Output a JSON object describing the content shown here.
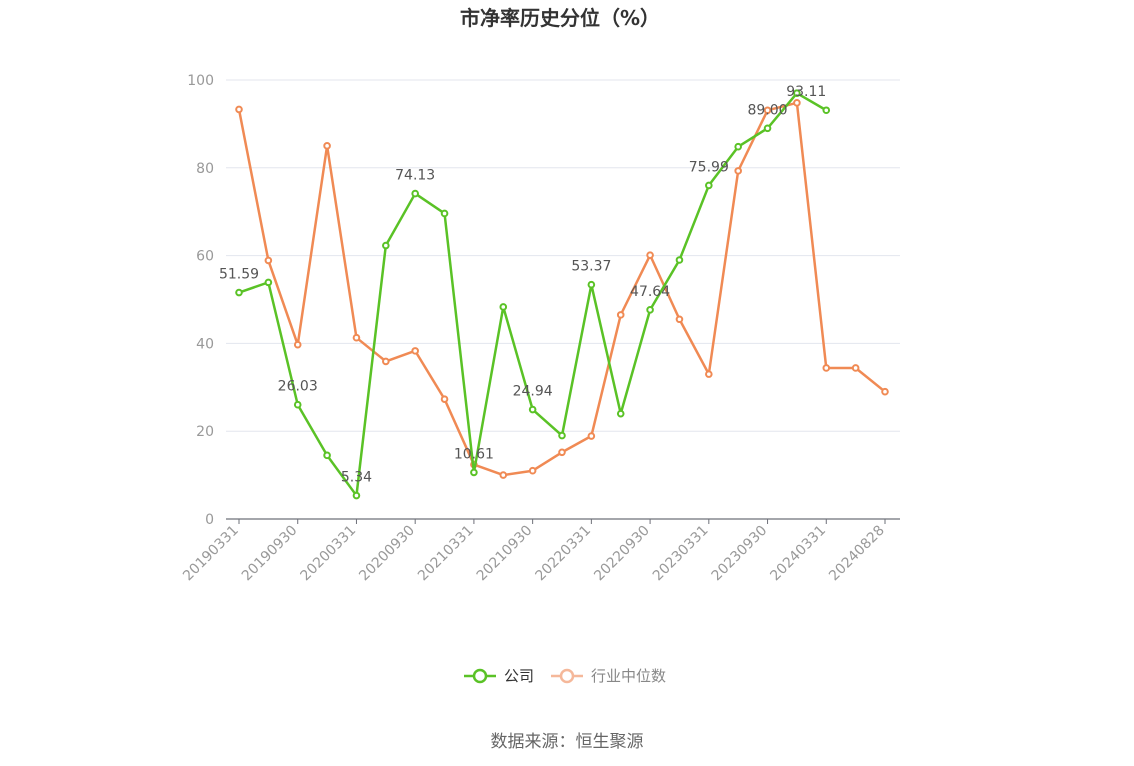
{
  "chart_data": {
    "type": "line",
    "title": "市净率历史分位（%）",
    "xlabel": "",
    "ylabel": "",
    "ylim": [
      0,
      100
    ],
    "yticks": [
      0,
      20,
      40,
      60,
      80,
      100
    ],
    "grid": true,
    "legend_position": "bottom-center",
    "categories": [
      "20190331",
      "20190630",
      "20190930",
      "20191231",
      "20200331",
      "20200630",
      "20200930",
      "20201231",
      "20210331",
      "20210630",
      "20210930",
      "20211231",
      "20220331",
      "20220630",
      "20220930",
      "20221231",
      "20230331",
      "20230630",
      "20230930",
      "20231231",
      "20240331",
      "20240630",
      "20240828"
    ],
    "tick_labels": [
      "20190331",
      "20190930",
      "20200331",
      "20200930",
      "20210331",
      "20210930",
      "20220331",
      "20220930",
      "20230331",
      "20230930",
      "20240331",
      "20240828"
    ],
    "tick_indices": [
      0,
      2,
      4,
      6,
      8,
      10,
      12,
      14,
      16,
      18,
      20,
      22
    ],
    "series": [
      {
        "name": "公司",
        "color": "#5ac226",
        "values": [
          51.59,
          53.9,
          26.03,
          14.5,
          5.34,
          62.3,
          74.13,
          69.6,
          10.61,
          48.3,
          24.94,
          19.0,
          53.37,
          24.0,
          47.64,
          59.0,
          75.99,
          84.8,
          89.0,
          97.0,
          93.11,
          null,
          null
        ],
        "labels": [
          {
            "index": 0,
            "text": "51.59"
          },
          {
            "index": 2,
            "text": "26.03"
          },
          {
            "index": 4,
            "text": "5.34"
          },
          {
            "index": 6,
            "text": "74.13"
          },
          {
            "index": 8,
            "text": "10.61"
          },
          {
            "index": 10,
            "text": "24.94"
          },
          {
            "index": 12,
            "text": "53.37"
          },
          {
            "index": 14,
            "text": "47.64"
          },
          {
            "index": 16,
            "text": "75.99"
          },
          {
            "index": 18,
            "text": "89.00"
          },
          {
            "index": 20,
            "text": "93.11"
          }
        ]
      },
      {
        "name": "行业中位数",
        "color": "#f08a54",
        "values": [
          93.3,
          58.9,
          39.7,
          85.0,
          41.3,
          35.9,
          38.3,
          27.3,
          12.4,
          10.0,
          11.0,
          15.2,
          18.9,
          46.5,
          60.1,
          45.5,
          33.0,
          79.3,
          93.1,
          94.8,
          34.4,
          34.4,
          29.0
        ]
      }
    ]
  },
  "legend": {
    "items": [
      {
        "label": "公司",
        "color": "#5ac226"
      },
      {
        "label": "行业中位数",
        "color": "#f5b89a"
      }
    ]
  },
  "source": "数据来源：恒生聚源",
  "colors": {
    "axis": "#6e7079",
    "grid": "#e3e6ee",
    "tick_text": "#999999"
  }
}
